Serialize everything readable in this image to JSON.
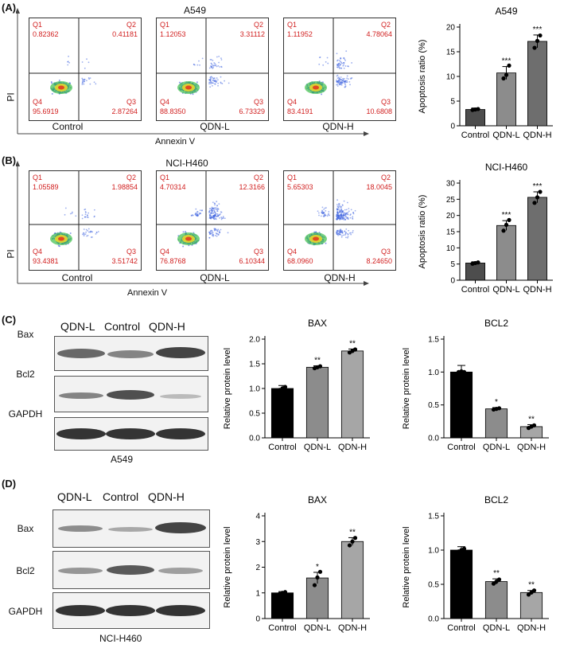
{
  "panels": {
    "A": {
      "label": "(A)",
      "cell_line": "A549",
      "y_axis": "PI",
      "x_axis": "Annexin V",
      "plots": [
        {
          "name": "Control",
          "q1": "0.82362",
          "q2": "0.41181",
          "q3": "2.87264",
          "q4": "95.6919"
        },
        {
          "name": "QDN-L",
          "q1": "1.12053",
          "q2": "3.31112",
          "q3": "6.73329",
          "q4": "88.8350"
        },
        {
          "name": "QDN-H",
          "q1": "1.11952",
          "q2": "4.78064",
          "q3": "10.6808",
          "q4": "83.4191"
        }
      ]
    },
    "B": {
      "label": "(B)",
      "cell_line": "NCI-H460",
      "y_axis": "PI",
      "x_axis": "Annexin V",
      "plots": [
        {
          "name": "Control",
          "q1": "1.05589",
          "q2": "1.98854",
          "q3": "3.51742",
          "q4": "93.4381"
        },
        {
          "name": "QDN-L",
          "q1": "4.70314",
          "q2": "12.3166",
          "q3": "6.10344",
          "q4": "76.8768"
        },
        {
          "name": "QDN-H",
          "q1": "5.65303",
          "q2": "18.0045",
          "q3": "8.24650",
          "q4": "68.0960"
        }
      ]
    },
    "C": {
      "label": "(C)",
      "blot_caption": "A549",
      "lanes": [
        "QDN-L",
        "Control",
        "QDN-H"
      ],
      "rows": [
        "Bax",
        "Bcl2",
        "GAPDH"
      ]
    },
    "D": {
      "label": "(D)",
      "blot_caption": "NCI-H460",
      "lanes": [
        "QDN-L",
        "Control",
        "QDN-H"
      ],
      "rows": [
        "Bax",
        "Bcl2",
        "GAPDH"
      ]
    }
  },
  "quadrant_names": {
    "q1": "Q1",
    "q2": "Q2",
    "q3": "Q3",
    "q4": "Q4"
  },
  "colors": {
    "bar_dark": "#4d4d4d",
    "bar_mid": "#8c8c8c",
    "bar_light": "#a6a6a6",
    "black": "#000000",
    "quadrant_text": "#d11f1f"
  },
  "chart_data": [
    {
      "id": "chartA",
      "type": "bar",
      "title": "A549",
      "ylabel": "Apoptosis ratio (%)",
      "categories": [
        "Control",
        "QDN-L",
        "QDN-H"
      ],
      "values": [
        3.3,
        10.7,
        17.1
      ],
      "errors": [
        0.3,
        1.3,
        1.3
      ],
      "points": [
        [
          3.2,
          3.3,
          3.4
        ],
        [
          9.6,
          10.3,
          12.2
        ],
        [
          15.8,
          17.2,
          18.3
        ]
      ],
      "significance": [
        "",
        "***",
        "***"
      ],
      "ylim": [
        0,
        20
      ],
      "yticks": [
        0,
        5,
        10,
        15,
        20
      ],
      "fills": [
        "#4d4d4d",
        "#8c8c8c",
        "#6e6e6e"
      ]
    },
    {
      "id": "chartB",
      "type": "bar",
      "title": "NCI-H460",
      "ylabel": "Apoptosis ratio (%)",
      "categories": [
        "Control",
        "QDN-L",
        "QDN-H"
      ],
      "values": [
        5.3,
        16.9,
        25.6
      ],
      "errors": [
        0.4,
        1.5,
        1.7
      ],
      "points": [
        [
          5.1,
          5.3,
          5.5
        ],
        [
          15.3,
          17.1,
          18.6
        ],
        [
          23.9,
          25.6,
          27.3
        ]
      ],
      "significance": [
        "",
        "***",
        "***"
      ],
      "ylim": [
        0,
        30
      ],
      "yticks": [
        0,
        5,
        10,
        15,
        20,
        25,
        30
      ],
      "fills": [
        "#4d4d4d",
        "#8c8c8c",
        "#6e6e6e"
      ]
    },
    {
      "id": "chartC1",
      "type": "bar",
      "title": "BAX",
      "ylabel": "Relative protein level",
      "categories": [
        "Control",
        "QDN-L",
        "QDN-H"
      ],
      "values": [
        1.0,
        1.43,
        1.76
      ],
      "errors": [
        0.06,
        0.03,
        0.04
      ],
      "points": [
        [
          0.97,
          1.0,
          1.03
        ],
        [
          1.41,
          1.43,
          1.45
        ],
        [
          1.73,
          1.76,
          1.79
        ]
      ],
      "significance": [
        "",
        "**",
        "**"
      ],
      "ylim": [
        0,
        2.0
      ],
      "yticks": [
        0.0,
        0.5,
        1.0,
        1.5,
        2.0
      ],
      "fills": [
        "#000000",
        "#8c8c8c",
        "#a6a6a6"
      ]
    },
    {
      "id": "chartC2",
      "type": "bar",
      "title": "BCL2",
      "ylabel": "Relative protein level",
      "categories": [
        "Control",
        "QDN-L",
        "QDN-H"
      ],
      "values": [
        1.0,
        0.44,
        0.17
      ],
      "errors": [
        0.1,
        0.02,
        0.03
      ],
      "points": [
        [
          1.0,
          1.01,
          1.0
        ],
        [
          0.43,
          0.44,
          0.45
        ],
        [
          0.15,
          0.17,
          0.19
        ]
      ],
      "significance": [
        "",
        "*",
        "**"
      ],
      "ylim": [
        0,
        1.5
      ],
      "yticks": [
        0.0,
        0.5,
        1.0,
        1.5
      ],
      "fills": [
        "#000000",
        "#8c8c8c",
        "#a6a6a6"
      ]
    },
    {
      "id": "chartD1",
      "type": "bar",
      "title": "BAX",
      "ylabel": "Relative protein level",
      "categories": [
        "Control",
        "QDN-L",
        "QDN-H"
      ],
      "values": [
        1.0,
        1.58,
        3.0
      ],
      "errors": [
        0.05,
        0.22,
        0.15
      ],
      "points": [
        [
          0.96,
          1.0,
          1.03
        ],
        [
          1.3,
          1.6,
          1.82
        ],
        [
          2.85,
          3.0,
          3.14
        ]
      ],
      "significance": [
        "",
        "*",
        "**"
      ],
      "ylim": [
        0,
        4
      ],
      "yticks": [
        0,
        1,
        2,
        3,
        4
      ],
      "fills": [
        "#000000",
        "#8c8c8c",
        "#a6a6a6"
      ]
    },
    {
      "id": "chartD2",
      "type": "bar",
      "title": "BCL2",
      "ylabel": "Relative protein level",
      "categories": [
        "Control",
        "QDN-L",
        "QDN-H"
      ],
      "values": [
        1.0,
        0.54,
        0.38
      ],
      "errors": [
        0.05,
        0.04,
        0.03
      ],
      "points": [
        [
          0.98,
          1.0,
          1.02
        ],
        [
          0.51,
          0.54,
          0.57
        ],
        [
          0.35,
          0.38,
          0.41
        ]
      ],
      "significance": [
        "",
        "**",
        "**"
      ],
      "ylim": [
        0,
        1.5
      ],
      "yticks": [
        0.0,
        0.5,
        1.0,
        1.5
      ],
      "fills": [
        "#000000",
        "#8c8c8c",
        "#a6a6a6"
      ]
    }
  ]
}
